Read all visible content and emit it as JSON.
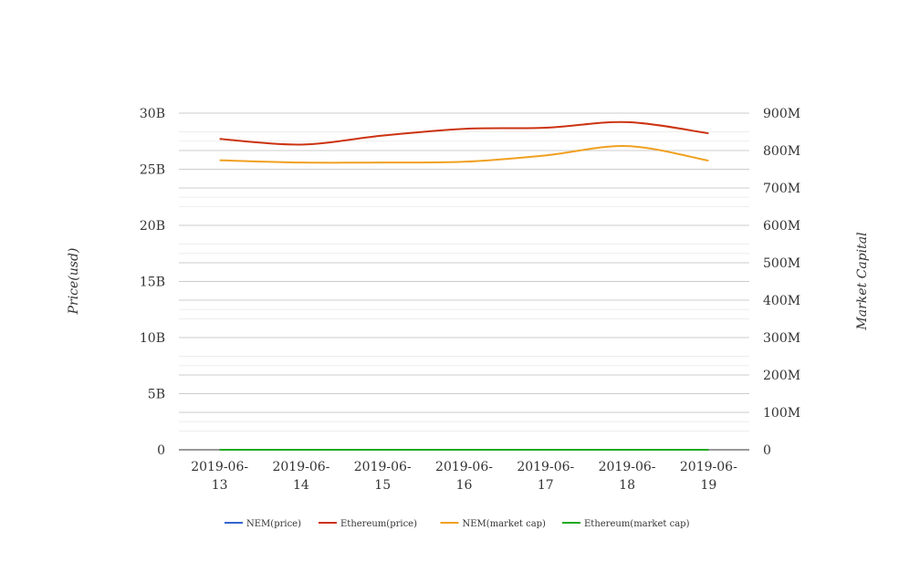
{
  "chart_data": {
    "type": "line",
    "title": "",
    "x": [
      "2019-06-13",
      "2019-06-14",
      "2019-06-15",
      "2019-06-16",
      "2019-06-17",
      "2019-06-18",
      "2019-06-19"
    ],
    "x_tick_lines": [
      [
        "2019-06-",
        "13"
      ],
      [
        "2019-06-",
        "14"
      ],
      [
        "2019-06-",
        "15"
      ],
      [
        "2019-06-",
        "16"
      ],
      [
        "2019-06-",
        "17"
      ],
      [
        "2019-06-",
        "18"
      ],
      [
        "2019-06-",
        "19"
      ]
    ],
    "y_left": {
      "label": "Price(usd)",
      "ylim": [
        0,
        30000000000
      ],
      "ticks": [
        0,
        5000000000,
        10000000000,
        15000000000,
        20000000000,
        25000000000,
        30000000000
      ],
      "tick_labels": [
        "0",
        "5B",
        "10B",
        "15B",
        "20B",
        "25B",
        "30B"
      ]
    },
    "y_right": {
      "label": "Market Capital",
      "ylim": [
        0,
        900000000
      ],
      "ticks": [
        0,
        100000000,
        200000000,
        300000000,
        400000000,
        500000000,
        600000000,
        700000000,
        800000000,
        900000000
      ],
      "tick_labels": [
        "0",
        "100M",
        "200M",
        "300M",
        "400M",
        "500M",
        "600M",
        "700M",
        "800M",
        "900M"
      ]
    },
    "grid": true,
    "legend_position": "bottom",
    "series": [
      {
        "name": "NEM(price)",
        "axis": "left",
        "color": "#3366cc",
        "values": [
          0.075,
          0.076,
          0.077,
          0.078,
          0.079,
          0.079,
          0.077
        ]
      },
      {
        "name": "Ethereum(price)",
        "axis": "left",
        "color": "#cc3311",
        "values": [
          27700000000,
          27200000000,
          28000000000,
          28600000000,
          28700000000,
          29200000000,
          28200000000
        ]
      },
      {
        "name": "NEM(market cap)",
        "axis": "right",
        "color": "#f0a020",
        "values": [
          774000000,
          768000000,
          768000000,
          770000000,
          787000000,
          812000000,
          773000000
        ]
      },
      {
        "name": "Ethereum(market cap)",
        "axis": "right",
        "color": "#22aa22",
        "values": [
          0,
          0,
          0,
          0,
          0,
          0,
          0
        ]
      }
    ]
  }
}
